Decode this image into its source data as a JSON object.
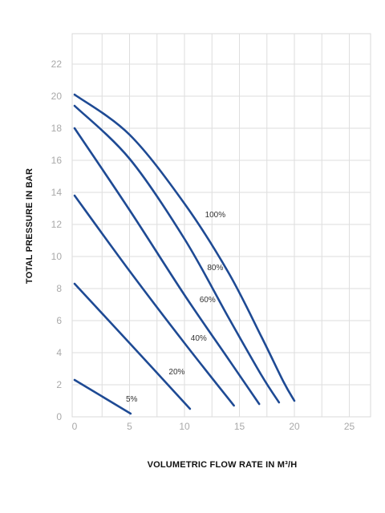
{
  "chart_data": {
    "type": "line",
    "title": "",
    "xlabel": "VOLUMETRIC FLOW RATE IN M³/H",
    "ylabel": "TOTAL PRESSURE IN BAR",
    "xlim": [
      0,
      27
    ],
    "ylim": [
      0,
      24
    ],
    "x_ticks": [
      0,
      5,
      10,
      15,
      20,
      25
    ],
    "y_ticks": [
      0,
      2,
      4,
      6,
      8,
      10,
      12,
      14,
      16,
      18,
      20,
      22
    ],
    "x_tick_labels": [
      "0",
      "5",
      "10",
      "15",
      "20",
      "25"
    ],
    "y_tick_labels": [
      "0",
      "2",
      "4",
      "6",
      "8",
      "10",
      "12",
      "14",
      "16",
      "18",
      "20",
      "22"
    ],
    "grid": true,
    "line_color": "#1e4a94",
    "series": [
      {
        "name": "5%",
        "points": [
          [
            0,
            2.3
          ],
          [
            5.1,
            0.2
          ]
        ]
      },
      {
        "name": "20%",
        "points": [
          [
            0,
            8.3
          ],
          [
            5,
            4.6
          ],
          [
            10.5,
            0.5
          ]
        ]
      },
      {
        "name": "40%",
        "points": [
          [
            0,
            13.8
          ],
          [
            5,
            9.1
          ],
          [
            10,
            4.6
          ],
          [
            14.5,
            0.7
          ]
        ]
      },
      {
        "name": "60%",
        "points": [
          [
            0,
            18.0
          ],
          [
            5,
            12.9
          ],
          [
            10,
            7.6
          ],
          [
            14,
            3.6
          ],
          [
            16.8,
            0.8
          ]
        ]
      },
      {
        "name": "80%",
        "points": [
          [
            0,
            19.4
          ],
          [
            5,
            16.1
          ],
          [
            10,
            11.1
          ],
          [
            14,
            6.2
          ],
          [
            17,
            2.6
          ],
          [
            18.6,
            0.9
          ]
        ]
      },
      {
        "name": "100%",
        "points": [
          [
            0,
            20.1
          ],
          [
            5,
            17.6
          ],
          [
            10,
            13.3
          ],
          [
            14,
            9.0
          ],
          [
            17,
            5.0
          ],
          [
            19,
            2.2
          ],
          [
            20,
            1.0
          ]
        ]
      }
    ],
    "annotations": [
      {
        "text": "5%",
        "x": 5.2,
        "y": 1.1
      },
      {
        "text": "20%",
        "x": 9.3,
        "y": 2.8
      },
      {
        "text": "40%",
        "x": 11.3,
        "y": 4.9
      },
      {
        "text": "60%",
        "x": 12.1,
        "y": 7.3
      },
      {
        "text": "80%",
        "x": 12.8,
        "y": 9.3
      },
      {
        "text": "100%",
        "x": 12.8,
        "y": 12.6
      }
    ]
  }
}
